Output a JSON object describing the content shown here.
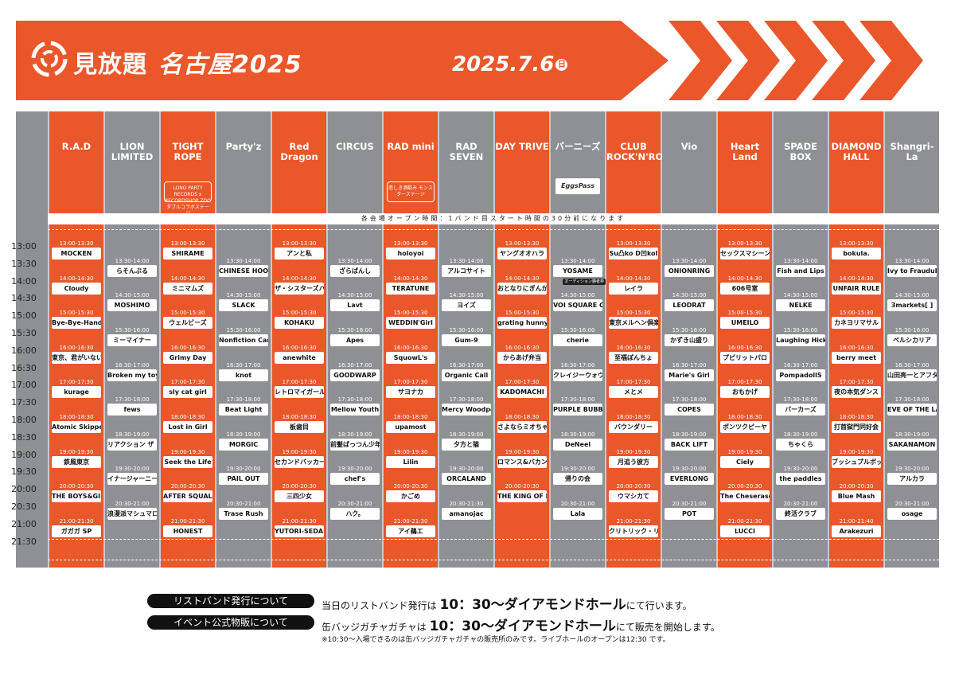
{
  "header": {
    "brand": "見放題",
    "subtitle": "名古屋2025",
    "date": "2025.7.6",
    "day_of_week": "日"
  },
  "open_notice": "各会場オープン時間：1バンド目スタート時間の30分前になります",
  "time_labels": [
    "13:00",
    "13:30",
    "14:00",
    "14:30",
    "15:00",
    "15:30",
    "16:00",
    "16:30",
    "17:00",
    "17:30",
    "18:00",
    "18:30",
    "19:00",
    "19:30",
    "20:00",
    "20:30",
    "21:00",
    "21:30"
  ],
  "venues": [
    {
      "name": "R.A.D",
      "color": "o",
      "slots": [
        [
          "13:00-13:30",
          "MOCKEN"
        ],
        [
          "14:00-14:30",
          "Cloudy"
        ],
        [
          "15:00-15:30",
          "Bye-Bye-Handの方程式"
        ],
        [
          "16:00-16:30",
          "東京、君がいない街"
        ],
        [
          "17:00-17:30",
          "kurage"
        ],
        [
          "18:00-18:30",
          "Atomic Skipper"
        ],
        [
          "19:00-19:30",
          "鉄風東京"
        ],
        [
          "20:00-20:30",
          "THE BOYS&GIRLS"
        ],
        [
          "21:00-21:30",
          "ガガガ SP"
        ]
      ]
    },
    {
      "name": "LION LIMITED",
      "color": "g",
      "slots": [
        [
          "13:30-14:00",
          "らそんぶる"
        ],
        [
          "14:30-15:00",
          "MOSHIMO"
        ],
        [
          "15:30-16:00",
          "ミーマイナー"
        ],
        [
          "16:30-17:00",
          "Broken my toybox"
        ],
        [
          "17:30-18:00",
          "fews"
        ],
        [
          "18:30-19:00",
          "リアクション ザ ブッタ"
        ],
        [
          "19:30-20:00",
          "イナージャーニー"
        ],
        [
          "20:30-21:00",
          "浪漫派マシュマロ"
        ]
      ]
    },
    {
      "name": "TIGHT ROPE",
      "color": "o",
      "note": "LONG PARTY RECORDS x RECORDSHOP ZOO ダブルコラボステージ",
      "slots": [
        [
          "13:00-13:30",
          "SHIRAME"
        ],
        [
          "14:00-14:30",
          "ミニマムズ"
        ],
        [
          "15:00-15:30",
          "ウェルビーズ"
        ],
        [
          "16:00-16:30",
          "Grimy Day"
        ],
        [
          "17:00-17:30",
          "sly cat girl"
        ],
        [
          "18:00-18:30",
          "Lost in Girl"
        ],
        [
          "19:00-19:30",
          "Seek the Life"
        ],
        [
          "20:00-20:30",
          "AFTER SQUALL"
        ],
        [
          "21:00-21:30",
          "HONEST"
        ]
      ]
    },
    {
      "name": "Party'z",
      "color": "g",
      "slots": [
        [
          "13:30-14:00",
          "CHINESE HOODIE"
        ],
        [
          "14:30-15:00",
          "SLACK"
        ],
        [
          "15:30-16:00",
          "Nonfiction Cartoons"
        ],
        [
          "16:30-17:00",
          "knot"
        ],
        [
          "17:30-18:00",
          "Beat Light"
        ],
        [
          "18:30-19:00",
          "MORGIC"
        ],
        [
          "19:30-20:00",
          "PAIL OUT"
        ],
        [
          "20:30-21:00",
          "Trase Rush"
        ]
      ]
    },
    {
      "name": "Red Dragon",
      "color": "o",
      "slots": [
        [
          "13:00-13:30",
          "アンと私"
        ],
        [
          "14:00-14:30",
          "ザ・シスターズハイ"
        ],
        [
          "15:00-15:30",
          "KOHAKU"
        ],
        [
          "16:00-16:30",
          "anewhite"
        ],
        [
          "17:00-17:30",
          "レトロマイガール!!"
        ],
        [
          "18:00-18:30",
          "板歯目"
        ],
        [
          "19:00-19:30",
          "セカンドバッカー"
        ],
        [
          "20:00-20:30",
          "三四少女"
        ],
        [
          "21:00-21:30",
          "YUTORI-SEDAI"
        ]
      ]
    },
    {
      "name": "CIRCUS",
      "color": "g",
      "slots": [
        [
          "13:30-14:00",
          "ざらばんし"
        ],
        [
          "14:30-15:00",
          "Lavt"
        ],
        [
          "15:30-16:00",
          "Apes"
        ],
        [
          "16:30-17:00",
          "GOODWARP"
        ],
        [
          "17:30-18:00",
          "Mellow Youth"
        ],
        [
          "18:30-19:00",
          "前髪ぱっつん少年"
        ],
        [
          "19:30-20:00",
          "chef's"
        ],
        [
          "20:30-21:00",
          "ハク。"
        ]
      ]
    },
    {
      "name": "RAD mini",
      "color": "o",
      "note": "悲しき酒飲み モンスターステージ",
      "slots": [
        [
          "13:00-13:30",
          "holoyoi"
        ],
        [
          "14:00-14:30",
          "TERATUNE"
        ],
        [
          "15:00-15:30",
          "WEDDIN'Girl"
        ],
        [
          "16:00-16:30",
          "SquowL's"
        ],
        [
          "17:00-17:30",
          "サヨナカ"
        ],
        [
          "18:00-18:30",
          "upamost"
        ],
        [
          "19:00-19:30",
          "Lilin"
        ],
        [
          "20:00-20:30",
          "かごめ"
        ],
        [
          "21:00-21:30",
          "アイ鵜エ"
        ]
      ]
    },
    {
      "name": "RAD SEVEN",
      "color": "g",
      "slots": [
        [
          "13:30-14:00",
          "アルコサイト"
        ],
        [
          "14:30-15:00",
          "ヨイズ"
        ],
        [
          "15:30-16:00",
          "Gum-9"
        ],
        [
          "16:30-17:00",
          "Organic Call"
        ],
        [
          "17:30-18:00",
          "Mercy Woodpecker"
        ],
        [
          "18:30-19:00",
          "夕方と猫"
        ],
        [
          "19:30-20:00",
          "ORCALAND"
        ],
        [
          "20:30-21:30",
          "amanojac"
        ]
      ]
    },
    {
      "name": "DAY TRIVE",
      "color": "o",
      "slots": [
        [
          "13:00-13:30",
          "ヤングオオハラ"
        ],
        [
          "14:00-14:30",
          "おとなりにぎんが計画"
        ],
        [
          "15:00-15:30",
          "grating hunny"
        ],
        [
          "16:00-16:30",
          "からあげ弁当"
        ],
        [
          "17:00-17:30",
          "KADOMACHI"
        ],
        [
          "18:00-18:30",
          "さよならミオちゃん"
        ],
        [
          "19:00-19:30",
          "ロマンス&バカンス"
        ],
        [
          "20:00-20:30",
          "THE KING OF ROOKIE"
        ]
      ]
    },
    {
      "name": "バーニーズ",
      "color": "g",
      "eggs": "EggsPass",
      "slots": [
        [
          "13:30-14:00",
          "YOSAME"
        ],
        [
          "14:30-15:00",
          "VOI SQUARE CAT"
        ],
        [
          "15:30-16:00",
          "cherie"
        ],
        [
          "16:30-17:00",
          "クレイジーウォウォ!!"
        ],
        [
          "17:30-18:00",
          "PURPLE BUBBLE"
        ],
        [
          "18:30-19:00",
          "DeNeel"
        ],
        [
          "19:30-20:00",
          "帰りの会"
        ],
        [
          "20:30-21:00",
          "Lala"
        ]
      ],
      "badge": "オーディション勝者枠"
    },
    {
      "name": "CLUB ROCK'N'ROLL",
      "color": "o",
      "slots": [
        [
          "13:00-13:30",
          "Su凸ko D凹koI"
        ],
        [
          "14:00-14:30",
          "レイラ"
        ],
        [
          "15:00-15:30",
          "東京メルヘン倶楽部"
        ],
        [
          "16:00-16:30",
          "至福ぽんちょ"
        ],
        [
          "17:00-17:30",
          "メとメ"
        ],
        [
          "18:00-18:30",
          "バウンダリー"
        ],
        [
          "19:00-19:30",
          "月追う彼方"
        ],
        [
          "20:00-20:30",
          "ウマシカて"
        ],
        [
          "21:00-21:30",
          "クリトリック・リス"
        ]
      ]
    },
    {
      "name": "Vio",
      "color": "g",
      "slots": [
        [
          "13:30-14:00",
          "ONIONRING"
        ],
        [
          "14:30-15:00",
          "LEODRAT"
        ],
        [
          "15:30-16:00",
          "かずき山盛り"
        ],
        [
          "16:30-17:00",
          "Marie's Girl"
        ],
        [
          "17:30-18:00",
          "COPES"
        ],
        [
          "18:30-19:00",
          "BACK LIFT"
        ],
        [
          "19:30-20:00",
          "EVERLONG"
        ],
        [
          "20:30-21:00",
          "POT"
        ]
      ]
    },
    {
      "name": "Heart Land",
      "color": "o",
      "slots": [
        [
          "13:00-13:30",
          "セックスマシーン!!"
        ],
        [
          "14:00-14:30",
          "606号室"
        ],
        [
          "15:00-15:30",
          "UMEILO"
        ],
        [
          "16:00-16:30",
          "プピリットパロ"
        ],
        [
          "17:00-17:30",
          "おもかげ"
        ],
        [
          "18:00-18:30",
          "ポンツクピーヤ"
        ],
        [
          "19:00-19:30",
          "Ciely"
        ],
        [
          "20:00-20:30",
          "The Cheserasera"
        ],
        [
          "21:00-21:30",
          "LUCCI"
        ]
      ]
    },
    {
      "name": "SPADE BOX",
      "color": "g",
      "slots": [
        [
          "13:30-14:00",
          "Fish and Lips"
        ],
        [
          "14:30-15:00",
          "NELKE"
        ],
        [
          "15:30-16:00",
          "Laughing Hick"
        ],
        [
          "16:30-17:00",
          "PompadollS"
        ],
        [
          "17:30-18:00",
          "バーカーズ"
        ],
        [
          "18:30-19:00",
          "ちゃくら"
        ],
        [
          "19:30-20:00",
          "the paddles"
        ],
        [
          "20:30-21:00",
          "終活クラブ"
        ]
      ]
    },
    {
      "name": "DIAMOND HALL",
      "color": "o",
      "slots": [
        [
          "13:00-13:30",
          "bokula."
        ],
        [
          "14:00-14:30",
          "UNFAIR RULE"
        ],
        [
          "15:00-15:30",
          "カネヨリマサル"
        ],
        [
          "16:00-16:30",
          "berry meet"
        ],
        [
          "17:00-17:30",
          "夜の本気ダンス"
        ],
        [
          "18:00-18:30",
          "打首獄門同好会"
        ],
        [
          "19:00-19:30",
          "ブッシュプルボット"
        ],
        [
          "20:00-20:30",
          "Blue Mash"
        ],
        [
          "21:00-21:40",
          "Arakezuri"
        ]
      ]
    },
    {
      "name": "Shangri-La",
      "color": "g",
      "slots": [
        [
          "13:30-14:00",
          "Ivy to Fraudulent Game"
        ],
        [
          "14:30-15:00",
          "3markets[ ]"
        ],
        [
          "15:30-16:00",
          "ペルシカリア"
        ],
        [
          "16:30-17:00",
          "山田亮一とアフターソウル"
        ],
        [
          "17:30-18:00",
          "EVE OF THE LAIN"
        ],
        [
          "18:30-19:00",
          "SAKANAMON"
        ],
        [
          "19:30-20:00",
          "アルカラ"
        ],
        [
          "20:30-21:00",
          "osage"
        ]
      ]
    }
  ],
  "footer": {
    "row1_label": "リストバンド発行について",
    "row1_pre": "当日のリストバンド発行は",
    "row1_big": "10：30〜ダイアモンドホール",
    "row1_post": "にて行います。",
    "row2_label": "イベント公式物販について",
    "row2_pre": "缶バッジガチャガチャは",
    "row2_big": "10：30〜ダイアモンドホール",
    "row2_post": "にて販売を開始します。",
    "note": "※10:30〜入場できるのは缶バッジガチャガチャの販売所のみです。ライブホールのオープンは12:30 です。"
  },
  "colors": {
    "orange": "#e9572a",
    "gray": "#8e9094",
    "light_gray": "#c7c9cc"
  }
}
